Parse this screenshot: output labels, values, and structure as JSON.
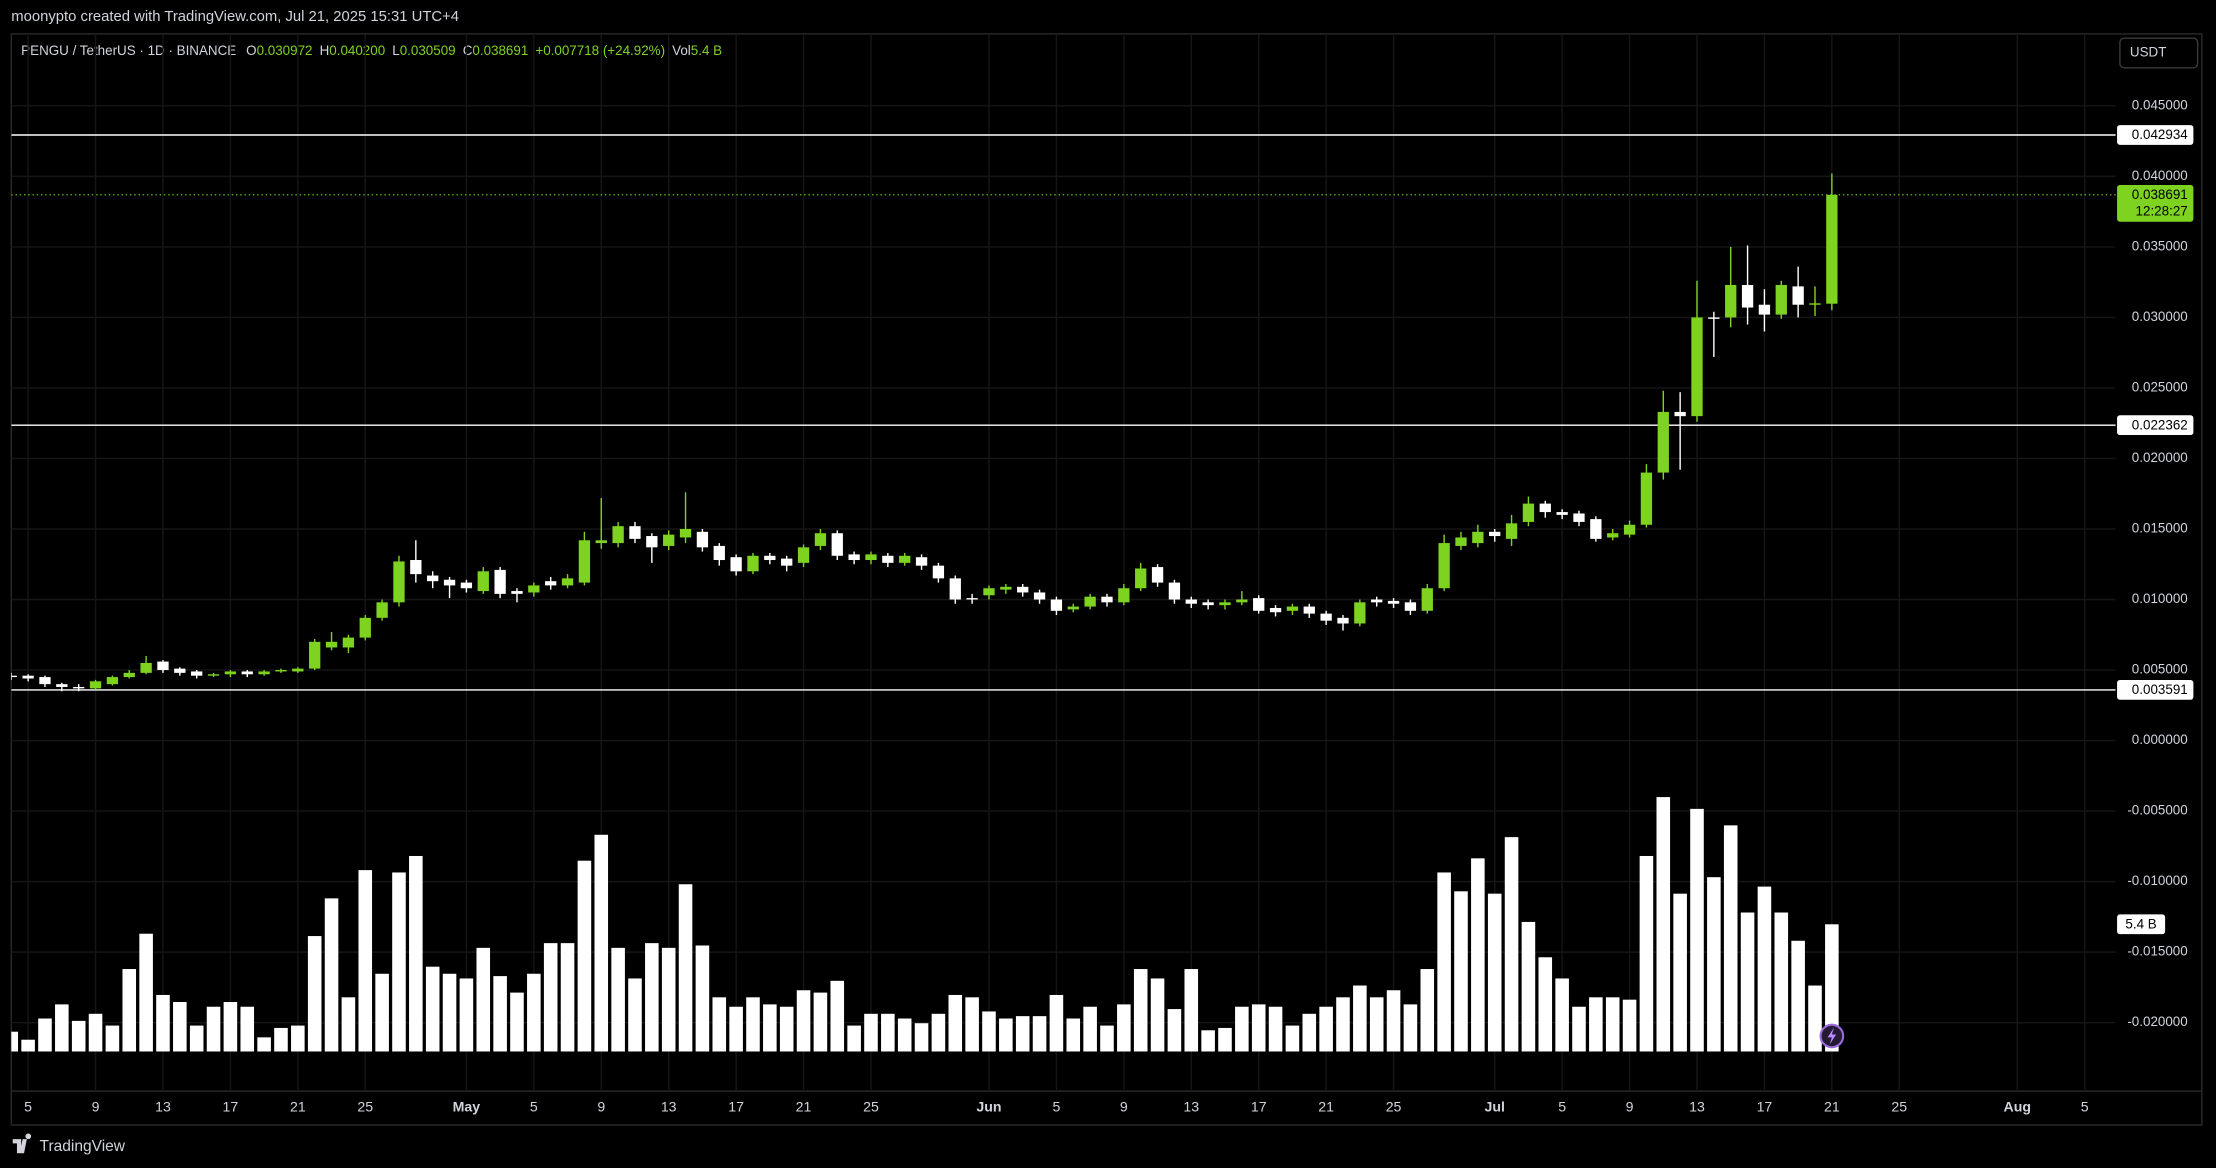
{
  "header": {
    "text": "moonypto created with TradingView.com, Jul 21, 2025 15:31 UTC+4"
  },
  "legend": {
    "symbol": "PENGU / TetherUS · 1D · BINANCE",
    "ohlc": [
      {
        "label": "O",
        "value": "0.030972"
      },
      {
        "label": "H",
        "value": "0.040200"
      },
      {
        "label": "L",
        "value": "0.030509"
      },
      {
        "label": "C",
        "value": "0.038691"
      }
    ],
    "change": "+0.007718 (+24.92%)",
    "volume": {
      "label": "Vol",
      "value": "5.4 B"
    }
  },
  "footer": {
    "brand": "TradingView"
  },
  "chart_data": {
    "type": "candlestick",
    "currency": "USDT",
    "categories": [
      null,
      "5",
      null,
      null,
      null,
      "9",
      null,
      null,
      null,
      "13",
      null,
      null,
      null,
      "17",
      null,
      null,
      null,
      "21",
      null,
      null,
      null,
      "25",
      null,
      null,
      null,
      null,
      null,
      "May",
      null,
      null,
      null,
      "5",
      null,
      null,
      null,
      "9",
      null,
      null,
      null,
      "13",
      null,
      null,
      null,
      "17",
      null,
      null,
      null,
      "21",
      null,
      null,
      null,
      "25",
      null,
      null,
      null,
      null,
      null,
      null,
      "Jun",
      null,
      null,
      null,
      "5",
      null,
      null,
      null,
      "9",
      null,
      null,
      null,
      "13",
      null,
      null,
      null,
      "17",
      null,
      null,
      null,
      "21",
      null,
      null,
      null,
      "25",
      null,
      null,
      null,
      null,
      null,
      "Jul",
      null,
      null,
      null,
      "5",
      null,
      null,
      null,
      "9",
      null,
      null,
      null,
      "13",
      null,
      null,
      null,
      "17",
      null,
      null,
      null,
      "21",
      null,
      null,
      null,
      "25",
      null,
      null,
      null,
      null,
      null,
      null,
      "Aug",
      null,
      null,
      null,
      "5",
      null
    ],
    "open": [
      0.0046,
      0.0046,
      0.0045,
      0.004,
      0.0038,
      0.0037,
      0.004,
      0.0045,
      0.0048,
      0.0056,
      0.0051,
      0.0049,
      0.0046,
      0.0047,
      0.0049,
      0.0047,
      0.0049,
      0.0049,
      0.0051,
      0.0066,
      0.0066,
      0.0073,
      0.0087,
      0.0098,
      0.0128,
      0.0117,
      0.0114,
      0.0112,
      0.0106,
      0.0121,
      0.0106,
      0.0105,
      0.0113,
      0.011,
      0.0112,
      0.014,
      0.014,
      0.0152,
      0.0145,
      0.0138,
      0.0144,
      0.0148,
      0.0138,
      0.013,
      0.012,
      0.0131,
      0.0129,
      0.0126,
      0.0138,
      0.0147,
      0.0132,
      0.0128,
      0.0131,
      0.0126,
      0.013,
      0.0124,
      0.0115,
      0.0101,
      0.0103,
      0.0107,
      0.0109,
      0.0105,
      0.01,
      0.0093,
      0.0095,
      0.0102,
      0.0098,
      0.0108,
      0.0123,
      0.0112,
      0.01,
      0.0098,
      0.0096,
      0.0098,
      0.0101,
      0.0094,
      0.0092,
      0.0095,
      0.009,
      0.0087,
      0.0083,
      0.01,
      0.0099,
      0.0098,
      0.0092,
      0.0108,
      0.0138,
      0.014,
      0.0148,
      0.0143,
      0.0155,
      0.0168,
      0.0162,
      0.0161,
      0.0157,
      0.0144,
      0.0146,
      0.0153,
      0.019,
      0.0233,
      0.023,
      0.03,
      0.03,
      0.0323,
      0.0309,
      0.0302,
      0.0322,
      0.0309,
      0.030972,
      null,
      null,
      null,
      null,
      null,
      null,
      null,
      null,
      null,
      null,
      null,
      null,
      null,
      null,
      null,
      null
    ],
    "high": [
      0.0048,
      0.0047,
      0.0046,
      0.0041,
      0.004,
      0.0043,
      0.0046,
      0.005,
      0.006,
      0.0057,
      0.0052,
      0.005,
      0.0048,
      0.005,
      0.005,
      0.005,
      0.0051,
      0.0052,
      0.0072,
      0.0077,
      0.0075,
      0.0089,
      0.01,
      0.0131,
      0.0142,
      0.012,
      0.0116,
      0.0114,
      0.0123,
      0.0123,
      0.0108,
      0.0112,
      0.0116,
      0.0118,
      0.0148,
      0.0172,
      0.0155,
      0.0155,
      0.0147,
      0.0149,
      0.0176,
      0.015,
      0.014,
      0.0132,
      0.0133,
      0.0133,
      0.0131,
      0.0139,
      0.015,
      0.0149,
      0.0134,
      0.0134,
      0.0133,
      0.0133,
      0.0132,
      0.0126,
      0.0117,
      0.0104,
      0.011,
      0.0111,
      0.0111,
      0.0107,
      0.0102,
      0.0097,
      0.0104,
      0.0104,
      0.0111,
      0.0126,
      0.0125,
      0.0114,
      0.0102,
      0.01,
      0.01,
      0.0106,
      0.0103,
      0.0096,
      0.0097,
      0.0097,
      0.0092,
      0.0089,
      0.01,
      0.0102,
      0.0101,
      0.01,
      0.0111,
      0.0146,
      0.0148,
      0.0153,
      0.015,
      0.016,
      0.0173,
      0.017,
      0.0164,
      0.0163,
      0.0159,
      0.015,
      0.0156,
      0.0196,
      0.0248,
      0.0247,
      0.0326,
      0.0304,
      0.035,
      0.0351,
      0.032,
      0.0326,
      0.0336,
      0.0322,
      0.0402,
      null,
      null,
      null,
      null,
      null,
      null,
      null,
      null,
      null,
      null,
      null,
      null,
      null,
      null,
      null,
      null
    ],
    "low": [
      0.0043,
      0.0042,
      0.0038,
      0.0035,
      0.0035,
      0.0036,
      0.0039,
      0.0044,
      0.0047,
      0.0048,
      0.0046,
      0.0044,
      0.0045,
      0.0045,
      0.0045,
      0.0046,
      0.0048,
      0.0048,
      0.005,
      0.0064,
      0.0062,
      0.0071,
      0.0085,
      0.0095,
      0.0112,
      0.0108,
      0.0101,
      0.0105,
      0.0104,
      0.0101,
      0.0098,
      0.0102,
      0.0107,
      0.0108,
      0.011,
      0.0136,
      0.0137,
      0.014,
      0.0126,
      0.0135,
      0.014,
      0.0134,
      0.0124,
      0.0117,
      0.0118,
      0.0125,
      0.012,
      0.0123,
      0.0135,
      0.0128,
      0.0125,
      0.0125,
      0.0123,
      0.0124,
      0.0121,
      0.0112,
      0.0097,
      0.0097,
      0.01,
      0.0104,
      0.0102,
      0.0097,
      0.0089,
      0.0091,
      0.0093,
      0.0095,
      0.0096,
      0.0106,
      0.0109,
      0.0097,
      0.0094,
      0.0093,
      0.0093,
      0.0096,
      0.009,
      0.0088,
      0.0089,
      0.0087,
      0.0082,
      0.0078,
      0.0081,
      0.0095,
      0.0094,
      0.0089,
      0.009,
      0.0106,
      0.0135,
      0.0137,
      0.0141,
      0.0138,
      0.0152,
      0.0158,
      0.0157,
      0.0152,
      0.0141,
      0.0142,
      0.0144,
      0.0151,
      0.0185,
      0.0192,
      0.0226,
      0.0272,
      0.0293,
      0.0295,
      0.029,
      0.0299,
      0.03,
      0.0301,
      0.030509,
      null,
      null,
      null,
      null,
      null,
      null,
      null,
      null,
      null,
      null,
      null,
      null,
      null,
      null,
      null,
      null
    ],
    "close": [
      0.0045,
      0.0044,
      0.004,
      0.0038,
      0.0037,
      0.0042,
      0.0045,
      0.0048,
      0.0055,
      0.005,
      0.0048,
      0.0046,
      0.0047,
      0.0049,
      0.0047,
      0.0049,
      0.005,
      0.0051,
      0.007,
      0.007,
      0.0073,
      0.0087,
      0.0098,
      0.0127,
      0.0118,
      0.0113,
      0.011,
      0.0108,
      0.012,
      0.0104,
      0.0104,
      0.011,
      0.011,
      0.0115,
      0.0142,
      0.0142,
      0.0152,
      0.0143,
      0.0137,
      0.0146,
      0.015,
      0.0137,
      0.0128,
      0.012,
      0.0131,
      0.0128,
      0.0124,
      0.0137,
      0.0147,
      0.0131,
      0.0128,
      0.0132,
      0.0126,
      0.0131,
      0.0124,
      0.0115,
      0.01,
      0.01,
      0.0108,
      0.0109,
      0.0105,
      0.01,
      0.0092,
      0.0095,
      0.0102,
      0.0098,
      0.0108,
      0.0122,
      0.0112,
      0.01,
      0.0097,
      0.0096,
      0.0098,
      0.01,
      0.0092,
      0.0091,
      0.0095,
      0.009,
      0.0085,
      0.0083,
      0.0098,
      0.0098,
      0.0097,
      0.0092,
      0.0108,
      0.014,
      0.0144,
      0.0148,
      0.0145,
      0.0154,
      0.0168,
      0.0162,
      0.016,
      0.0155,
      0.0143,
      0.0147,
      0.0153,
      0.019,
      0.0233,
      0.023,
      0.03,
      0.0299,
      0.0323,
      0.0307,
      0.0302,
      0.0323,
      0.0309,
      0.031,
      0.038691,
      null,
      null,
      null,
      null,
      null,
      null,
      null,
      null,
      null,
      null,
      null,
      null,
      null,
      null,
      null,
      null
    ],
    "volume": [
      0.84,
      0.5,
      1.4,
      2.0,
      1.3,
      1.6,
      1.1,
      3.5,
      5.0,
      2.4,
      2.1,
      1.1,
      1.9,
      2.1,
      1.9,
      0.6,
      1.0,
      1.1,
      4.9,
      6.5,
      2.3,
      7.7,
      3.3,
      7.6,
      8.3,
      3.6,
      3.3,
      3.1,
      4.4,
      3.2,
      2.5,
      3.3,
      4.6,
      4.6,
      8.1,
      9.2,
      4.4,
      3.1,
      4.6,
      4.4,
      7.1,
      4.5,
      2.3,
      1.9,
      2.3,
      2.0,
      1.9,
      2.6,
      2.5,
      3.0,
      1.1,
      1.6,
      1.6,
      1.4,
      1.2,
      1.6,
      2.4,
      2.3,
      1.7,
      1.4,
      1.5,
      1.5,
      2.4,
      1.4,
      1.9,
      1.1,
      2.0,
      3.5,
      3.1,
      1.8,
      3.5,
      0.9,
      1.0,
      1.9,
      2.0,
      1.9,
      1.1,
      1.6,
      1.9,
      2.3,
      2.8,
      2.3,
      2.6,
      2.0,
      3.5,
      7.6,
      6.8,
      8.2,
      6.7,
      9.1,
      5.5,
      4.0,
      3.1,
      1.9,
      2.3,
      2.3,
      2.2,
      8.3,
      10.8,
      6.7,
      10.3,
      7.4,
      9.6,
      5.9,
      7.0,
      5.9,
      4.7,
      2.8,
      5.4,
      null,
      null,
      null,
      null,
      null,
      null,
      null,
      null,
      null,
      null,
      null,
      null,
      null,
      null,
      null,
      null
    ],
    "volume_last_label": "5.4 B",
    "countdown": "12:28:27",
    "hlines": [
      0.042934,
      0.022362,
      0.003591
    ],
    "up_color": "#7ed321",
    "down_color": "#ffffff",
    "volume_color": "#ffffff",
    "hline_color": "#ffffff",
    "grid": true,
    "ylim": [
      -0.02485,
      0.0501
    ],
    "yticks": [
      {
        "value": 0.045,
        "label": "0.045000"
      },
      {
        "value": 0.04,
        "label": "0.040000"
      },
      {
        "value": 0.035,
        "label": "0.035000"
      },
      {
        "value": 0.03,
        "label": "0.030000"
      },
      {
        "value": 0.025,
        "label": "0.025000"
      },
      {
        "value": 0.02,
        "label": "0.020000"
      },
      {
        "value": 0.015,
        "label": "0.015000"
      },
      {
        "value": 0.01,
        "label": "0.010000"
      },
      {
        "value": 0.005,
        "label": "0.005000"
      },
      {
        "value": 0,
        "label": "0.000000"
      },
      {
        "value": -0.005,
        "label": "-0.005000"
      },
      {
        "value": -0.01,
        "label": "-0.010000"
      },
      {
        "value": -0.015,
        "label": "-0.015000"
      },
      {
        "value": -0.02,
        "label": "-0.020000"
      }
    ]
  }
}
